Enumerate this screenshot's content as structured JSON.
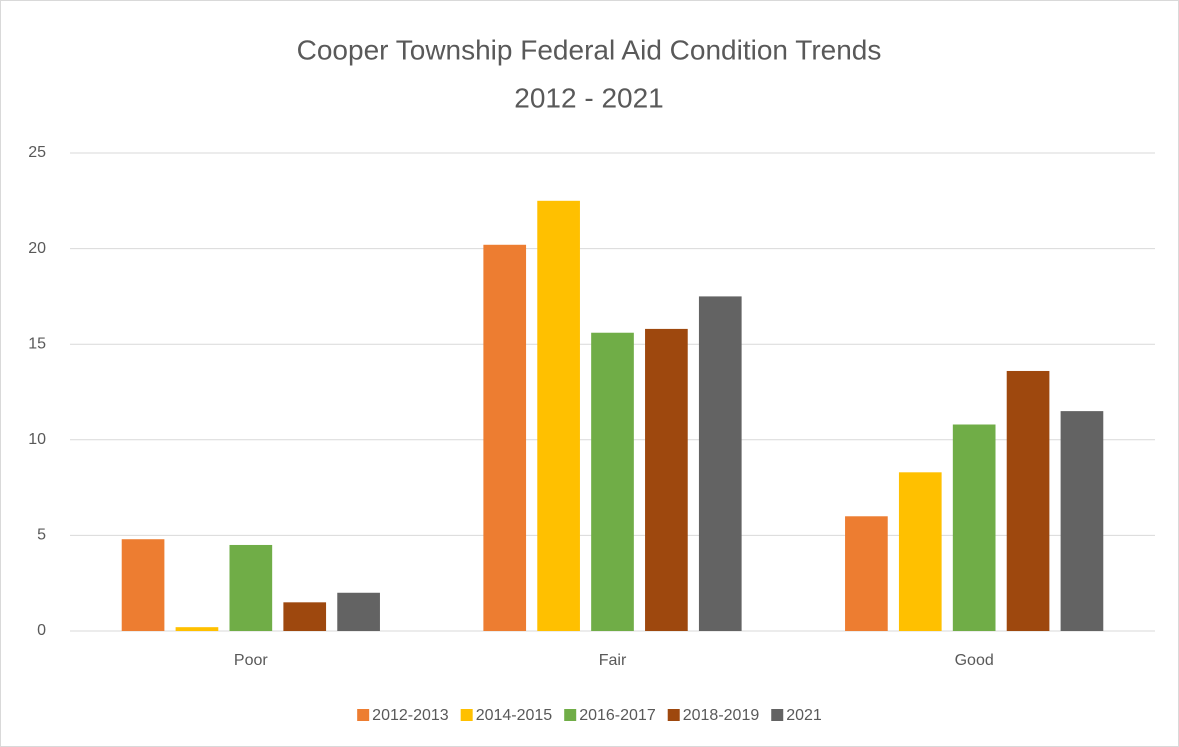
{
  "chart_data": {
    "type": "bar",
    "title": "Cooper Township Federal Aid Condition Trends",
    "subtitle": "2012 - 2021",
    "categories": [
      "Poor",
      "Fair",
      "Good"
    ],
    "series": [
      {
        "name": "2012-2013",
        "color": "#ED7D31",
        "values": [
          4.8,
          20.2,
          6.0
        ]
      },
      {
        "name": "2014-2015",
        "color": "#FFC000",
        "values": [
          0.2,
          22.5,
          8.3
        ]
      },
      {
        "name": "2016-2017",
        "color": "#70AD47",
        "values": [
          4.5,
          15.6,
          10.8
        ]
      },
      {
        "name": "2018-2019",
        "color": "#9E480E",
        "values": [
          1.5,
          15.8,
          13.6
        ]
      },
      {
        "name": "2021",
        "color": "#636363",
        "values": [
          2.0,
          17.5,
          11.5
        ]
      }
    ],
    "ylim": [
      0,
      25
    ],
    "yticks": [
      0,
      5,
      10,
      15,
      20,
      25
    ],
    "grid": true,
    "legend": "bottom"
  }
}
